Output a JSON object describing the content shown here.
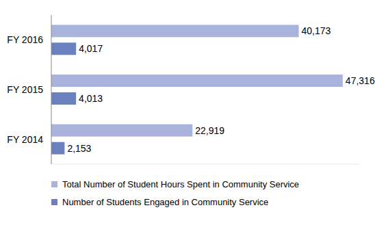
{
  "chart_data": {
    "type": "bar",
    "orientation": "horizontal",
    "categories": [
      "FY 2016",
      "FY 2015",
      "FY 2014"
    ],
    "series": [
      {
        "name": "Total Number of Student Hours Spent in Community Service",
        "color": "#a9b3dc",
        "values": [
          40173,
          47316,
          22919
        ],
        "value_labels": [
          "40,173",
          "47,316",
          "22,919"
        ]
      },
      {
        "name": "Number of Students Engaged in Community Service",
        "color": "#6a80bf",
        "values": [
          4017,
          4013,
          2153
        ],
        "value_labels": [
          "4,017",
          "4,013",
          "2,153"
        ]
      }
    ],
    "xlim": [
      0,
      50000
    ],
    "data_labels": true,
    "tick_labels": "y",
    "legend": "bottom",
    "grid": false
  }
}
